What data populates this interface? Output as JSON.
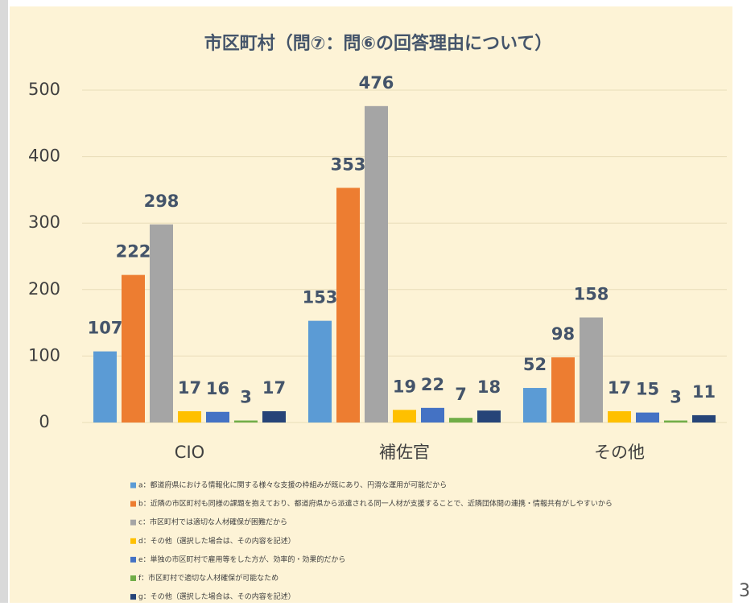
{
  "chart_data": {
    "type": "bar",
    "title": "市区町村（問⑦：問⑥の回答理由について）",
    "categories": [
      "CIO",
      "補佐官",
      "その他"
    ],
    "series": [
      {
        "name": "a：都道府県における情報化に関する様々な支援の枠組みが既にあり、円滑な運用が可能だから",
        "color": "#5b9bd5",
        "values": [
          107,
          153,
          52
        ]
      },
      {
        "name": "b：近隣の市区町村も同様の課題を抱えており、都道府県から派遣される同一人材が支援することで、近隣団体間の連携・情報共有がしやすいから",
        "color": "#ed7d31",
        "values": [
          222,
          353,
          98
        ]
      },
      {
        "name": "c：市区町村では適切な人材確保が困難だから",
        "color": "#a5a5a5",
        "values": [
          298,
          476,
          158
        ]
      },
      {
        "name": "d：その他（選択した場合は、その内容を記述）",
        "color": "#ffc000",
        "values": [
          17,
          19,
          17
        ]
      },
      {
        "name": "e：単独の市区町村で雇用等をした方が、効率的・効果的だから",
        "color": "#4472c4",
        "values": [
          16,
          22,
          15
        ]
      },
      {
        "name": "f：市区町村で適切な人材確保が可能なため",
        "color": "#70ad47",
        "values": [
          3,
          7,
          3
        ]
      },
      {
        "name": "g：その他（選択した場合は、その内容を記述）",
        "color": "#264478",
        "values": [
          17,
          18,
          11
        ]
      }
    ],
    "ylim": [
      0,
      500
    ],
    "yticks": [
      0,
      100,
      200,
      300,
      400,
      500
    ],
    "grid": true,
    "legend": "bottom",
    "page_number": "3"
  }
}
